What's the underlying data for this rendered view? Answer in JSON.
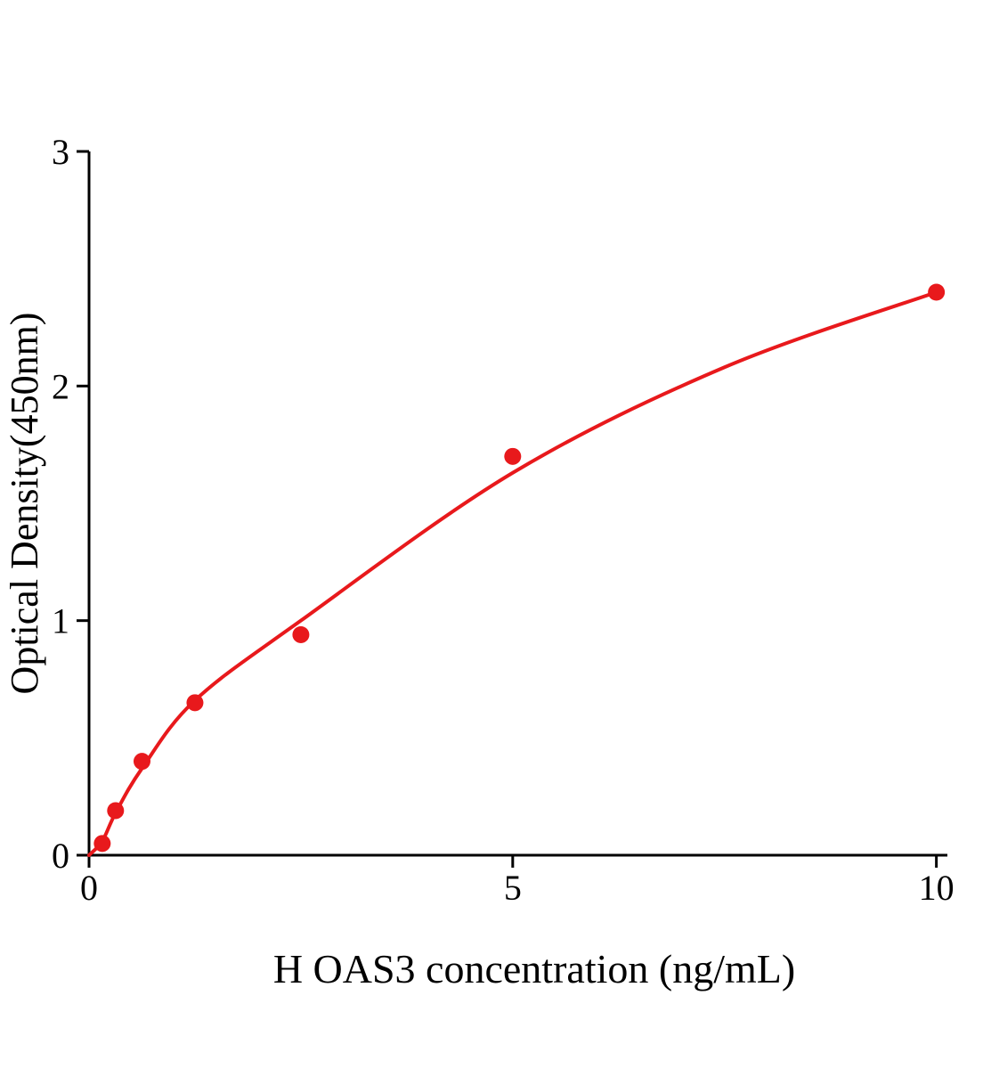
{
  "chart_data": {
    "type": "scatter",
    "title": "",
    "xlabel": "H OAS3 concentration (ng/mL)",
    "ylabel": "Optical Density(450nm)",
    "xlim": [
      0,
      10.13
    ],
    "ylim": [
      0,
      3
    ],
    "x_ticks": [
      0,
      5,
      10
    ],
    "y_ticks": [
      0,
      1,
      2,
      3
    ],
    "grid": false,
    "legend": "none",
    "points": [
      {
        "x": 0.156,
        "y": 0.05
      },
      {
        "x": 0.313,
        "y": 0.19
      },
      {
        "x": 0.625,
        "y": 0.4
      },
      {
        "x": 1.25,
        "y": 0.65
      },
      {
        "x": 2.5,
        "y": 0.94
      },
      {
        "x": 5,
        "y": 1.7
      },
      {
        "x": 10,
        "y": 2.4
      }
    ],
    "fit_curve": [
      [
        0,
        0
      ],
      [
        0.156,
        0.06
      ],
      [
        0.313,
        0.18
      ],
      [
        0.625,
        0.37
      ],
      [
        1.25,
        0.66
      ],
      [
        2.5,
        1.0
      ],
      [
        5,
        1.63
      ],
      [
        7.5,
        2.08
      ],
      [
        10,
        2.4
      ]
    ],
    "colors": {
      "series": "#e8191c",
      "axis": "#000000",
      "background": "#ffffff"
    }
  }
}
